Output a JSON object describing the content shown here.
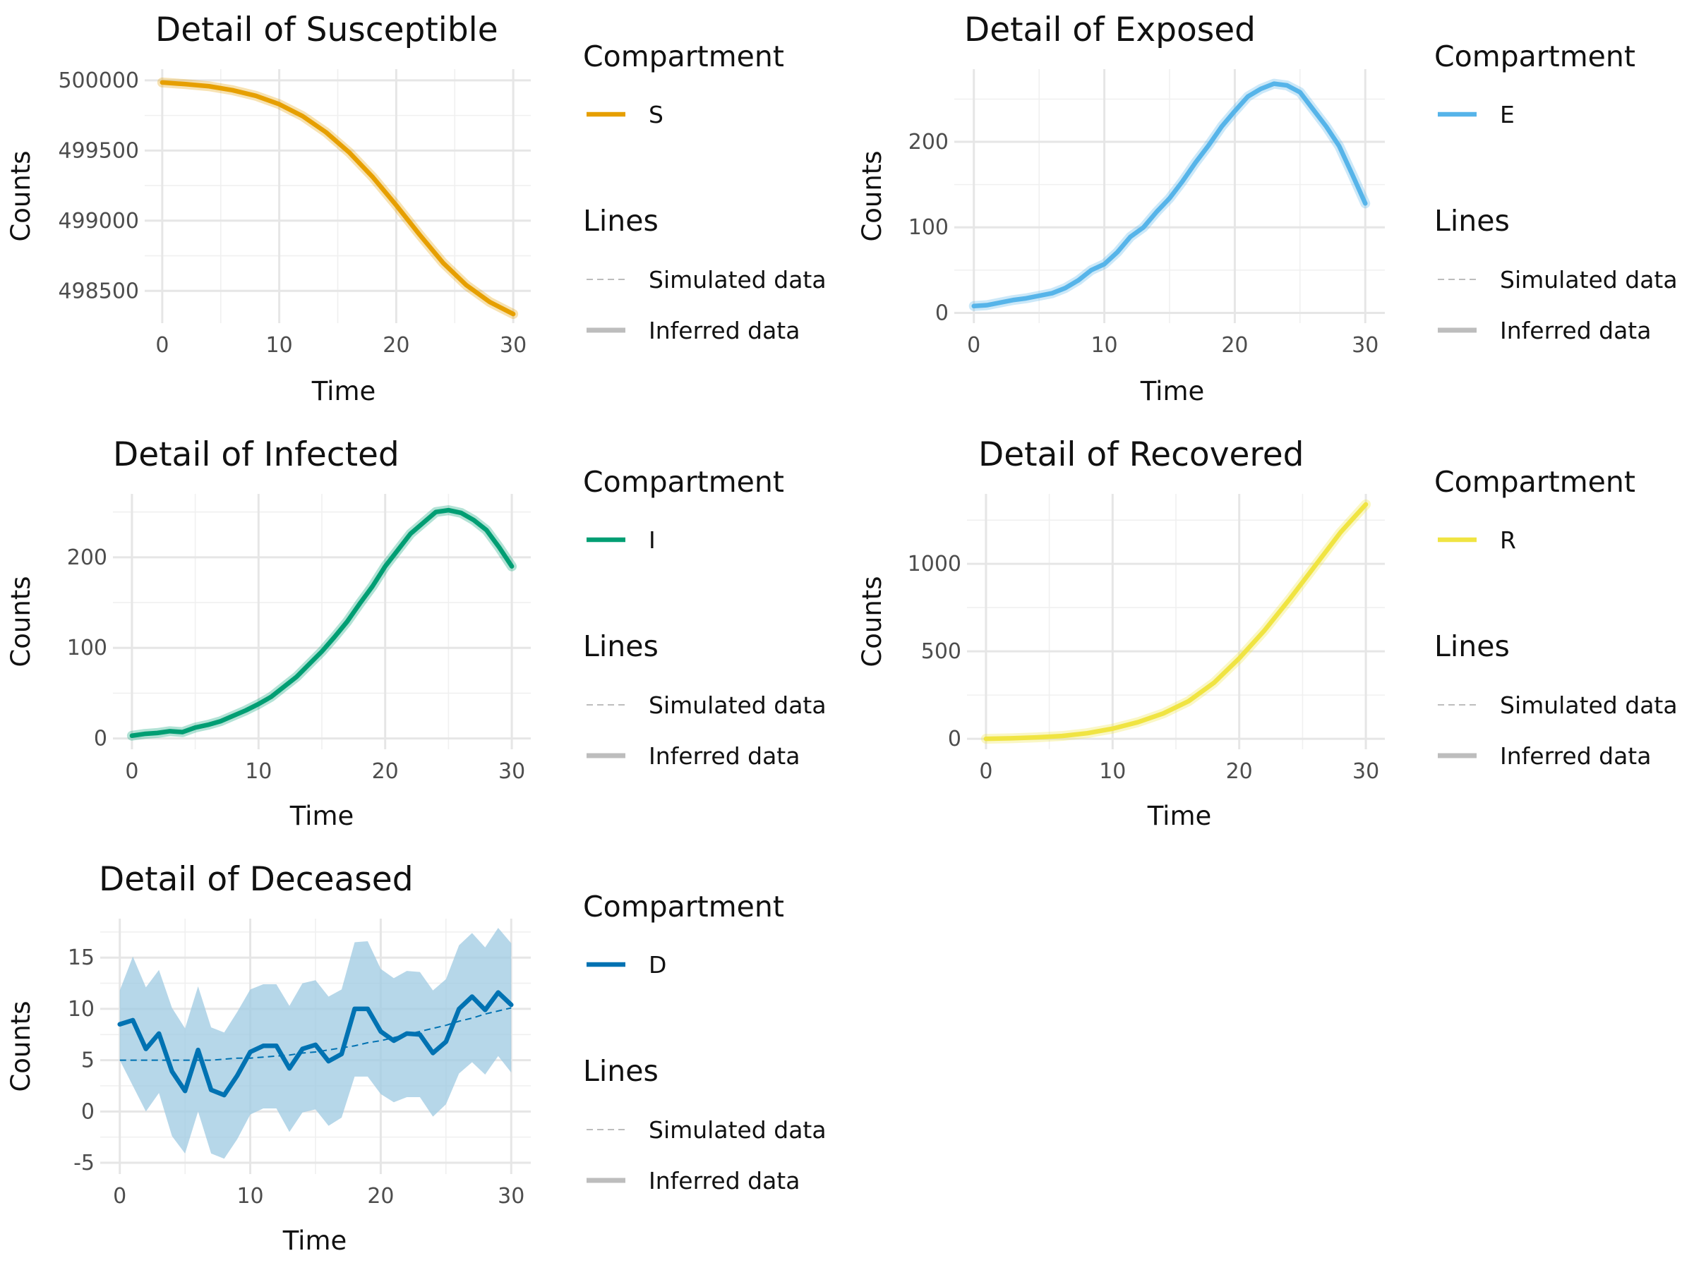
{
  "legend": {
    "compartment_title": "Compartment",
    "lines_title": "Lines",
    "simulated_label": "Simulated data",
    "inferred_label": "Inferred data"
  },
  "chart_data": [
    {
      "type": "line",
      "title": "Detail of Susceptible",
      "xlabel": "Time",
      "ylabel": "Counts",
      "compartment": "S",
      "color": "#E69F00",
      "xlim": [
        -1.5,
        31.5
      ],
      "ylim": [
        498270,
        500080
      ],
      "xticks": [
        0,
        10,
        20,
        30
      ],
      "yticks": [
        498500,
        499000,
        499500,
        500000
      ],
      "ytick_labels": [
        "498500",
        "499000",
        "499500",
        "500000"
      ],
      "grid": true,
      "series": [
        {
          "kind": "inferred",
          "x": [
            0,
            2,
            4,
            6,
            8,
            10,
            12,
            14,
            16,
            18,
            20,
            22,
            24,
            26,
            28,
            30
          ],
          "y": [
            499985,
            499973,
            499958,
            499930,
            499890,
            499830,
            499745,
            499630,
            499485,
            499310,
            499110,
            498900,
            498700,
            498540,
            498420,
            498335
          ]
        }
      ]
    },
    {
      "type": "line",
      "title": "Detail of Exposed",
      "xlabel": "Time",
      "ylabel": "Counts",
      "compartment": "E",
      "color": "#56B4E9",
      "xlim": [
        -1.5,
        31.5
      ],
      "ylim": [
        -12,
        285
      ],
      "xticks": [
        0,
        10,
        20,
        30
      ],
      "yticks": [
        0,
        100,
        200
      ],
      "ytick_labels": [
        "0",
        "100",
        "200"
      ],
      "grid": true,
      "series": [
        {
          "kind": "inferred",
          "x": [
            0,
            1,
            2,
            3,
            4,
            5,
            6,
            7,
            8,
            9,
            10,
            11,
            12,
            13,
            14,
            15,
            16,
            17,
            18,
            19,
            20,
            21,
            22,
            23,
            24,
            25,
            26,
            27,
            28,
            29,
            30
          ],
          "y": [
            8,
            9,
            12,
            15,
            17,
            20,
            23,
            29,
            38,
            50,
            57,
            71,
            89,
            100,
            118,
            134,
            154,
            176,
            196,
            218,
            236,
            253,
            262,
            268,
            266,
            258,
            238,
            218,
            195,
            162,
            128
          ]
        }
      ]
    },
    {
      "type": "line",
      "title": "Detail of Infected",
      "xlabel": "Time",
      "ylabel": "Counts",
      "compartment": "I",
      "color": "#009E73",
      "xlim": [
        -1.5,
        31.5
      ],
      "ylim": [
        -12,
        270
      ],
      "xticks": [
        0,
        10,
        20,
        30
      ],
      "yticks": [
        0,
        100,
        200
      ],
      "ytick_labels": [
        "0",
        "100",
        "200"
      ],
      "grid": true,
      "series": [
        {
          "kind": "inferred",
          "x": [
            0,
            1,
            2,
            3,
            4,
            5,
            6,
            7,
            8,
            9,
            10,
            11,
            12,
            13,
            14,
            15,
            16,
            17,
            18,
            19,
            20,
            21,
            22,
            23,
            24,
            25,
            26,
            27,
            28,
            29,
            30
          ],
          "y": [
            3,
            5,
            6,
            8,
            7,
            12,
            15,
            19,
            25,
            31,
            38,
            46,
            57,
            68,
            82,
            96,
            112,
            129,
            149,
            168,
            190,
            208,
            226,
            238,
            250,
            252,
            249,
            241,
            230,
            211,
            190
          ]
        }
      ]
    },
    {
      "type": "line",
      "title": "Detail of Recovered",
      "xlabel": "Time",
      "ylabel": "Counts",
      "compartment": "R",
      "color": "#F0E442",
      "xlim": [
        -1.5,
        31.5
      ],
      "ylim": [
        -60,
        1400
      ],
      "xticks": [
        0,
        10,
        20,
        30
      ],
      "yticks": [
        0,
        500,
        1000
      ],
      "ytick_labels": [
        "0",
        "500",
        "1000"
      ],
      "grid": true,
      "series": [
        {
          "kind": "inferred",
          "x": [
            0,
            2,
            4,
            6,
            8,
            10,
            12,
            14,
            16,
            18,
            20,
            22,
            24,
            26,
            28,
            30
          ],
          "y": [
            0,
            3,
            8,
            16,
            32,
            58,
            95,
            145,
            215,
            320,
            460,
            620,
            800,
            990,
            1180,
            1340
          ]
        }
      ]
    },
    {
      "type": "line",
      "title": "Detail of Deceased",
      "xlabel": "Time",
      "ylabel": "Counts",
      "compartment": "D",
      "color": "#0072B2",
      "band_color": "#9ecae1",
      "xlim": [
        -1.5,
        31.5
      ],
      "ylim": [
        -6.1,
        18.8
      ],
      "xticks": [
        0,
        10,
        20,
        30
      ],
      "yticks": [
        -5,
        0,
        5,
        10,
        15
      ],
      "ytick_labels": [
        "-5",
        "0",
        "5",
        "10",
        "15"
      ],
      "grid": true,
      "series": [
        {
          "kind": "inferred",
          "x": [
            0,
            1,
            2,
            3,
            4,
            5,
            6,
            7,
            8,
            9,
            10,
            11,
            12,
            13,
            14,
            15,
            16,
            17,
            18,
            19,
            20,
            21,
            22,
            23,
            24,
            25,
            26,
            27,
            28,
            29,
            30
          ],
          "y": [
            8.5,
            8.9,
            6.1,
            7.6,
            3.9,
            2.0,
            6.0,
            2.1,
            1.6,
            3.5,
            5.8,
            6.4,
            6.4,
            4.2,
            6.1,
            6.5,
            4.9,
            5.6,
            10.0,
            10.0,
            7.8,
            6.9,
            7.6,
            7.5,
            5.7,
            6.8,
            10.0,
            11.2,
            9.9,
            11.6,
            10.4
          ]
        },
        {
          "kind": "lower",
          "x": [
            0,
            1,
            2,
            3,
            4,
            5,
            6,
            7,
            8,
            9,
            10,
            11,
            12,
            13,
            14,
            15,
            16,
            17,
            18,
            19,
            20,
            21,
            22,
            23,
            24,
            25,
            26,
            27,
            28,
            29,
            30
          ],
          "y": [
            5.0,
            2.5,
            0.0,
            1.8,
            -2.4,
            -4.1,
            0.0,
            -4.1,
            -4.6,
            -2.7,
            -0.3,
            0.3,
            0.3,
            -2.0,
            -0.1,
            0.2,
            -1.4,
            -0.6,
            3.4,
            3.4,
            1.7,
            0.9,
            1.4,
            1.4,
            -0.5,
            0.7,
            3.7,
            4.8,
            3.6,
            5.4,
            3.8
          ]
        },
        {
          "kind": "upper",
          "x": [
            0,
            1,
            2,
            3,
            4,
            5,
            6,
            7,
            8,
            9,
            10,
            11,
            12,
            13,
            14,
            15,
            16,
            17,
            18,
            19,
            20,
            21,
            22,
            23,
            24,
            25,
            26,
            27,
            28,
            29,
            30
          ],
          "y": [
            11.8,
            15.1,
            12.1,
            13.8,
            10.1,
            8.1,
            12.2,
            8.2,
            7.7,
            9.7,
            11.9,
            12.4,
            12.4,
            10.3,
            12.5,
            12.8,
            11.2,
            11.9,
            16.5,
            16.6,
            13.9,
            13.0,
            13.7,
            13.6,
            11.8,
            12.9,
            16.2,
            17.4,
            16.0,
            17.9,
            16.4
          ]
        },
        {
          "kind": "simulated",
          "x": [
            0,
            1,
            2,
            3,
            4,
            5,
            6,
            7,
            8,
            9,
            10,
            11,
            12,
            13,
            14,
            15,
            16,
            17,
            18,
            19,
            20,
            21,
            22,
            23,
            24,
            25,
            26,
            27,
            28,
            29,
            30
          ],
          "y": [
            5.0,
            5.0,
            5.0,
            5.0,
            5.0,
            5.0,
            5.0,
            5.0,
            5.1,
            5.2,
            5.2,
            5.3,
            5.4,
            5.5,
            5.7,
            5.8,
            6.0,
            6.2,
            6.4,
            6.7,
            6.9,
            7.2,
            7.5,
            7.8,
            8.1,
            8.4,
            8.8,
            9.1,
            9.5,
            9.8,
            10.1
          ]
        }
      ]
    }
  ]
}
